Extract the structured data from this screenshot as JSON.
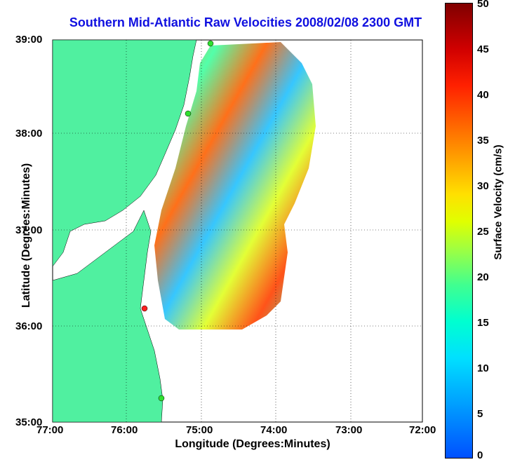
{
  "title": "Southern Mid-Atlantic Raw Velocities 2008/02/08 2300 GMT",
  "xlabel": "Longitude (Degrees:Minutes)",
  "ylabel": "Latitude (Degrees:Minutes)",
  "x_ticks": [
    "77:00",
    "76:00",
    "75:00",
    "74:00",
    "73:00",
    "72:00"
  ],
  "y_ticks": [
    "39:00",
    "38:00",
    "37:00",
    "36:00",
    "35:00"
  ],
  "colorbar": {
    "label": "Surface Velocity (cm/s)",
    "ticks": [
      "50",
      "45",
      "40",
      "35",
      "30",
      "25",
      "20",
      "15",
      "10",
      "5",
      "0"
    ],
    "range": [
      0,
      50
    ]
  },
  "colors": {
    "land": "#50f0a0",
    "ocean": "#ffffff",
    "title": "#1010e0",
    "station": "#30e030",
    "station_alt": "#ff2020"
  }
}
